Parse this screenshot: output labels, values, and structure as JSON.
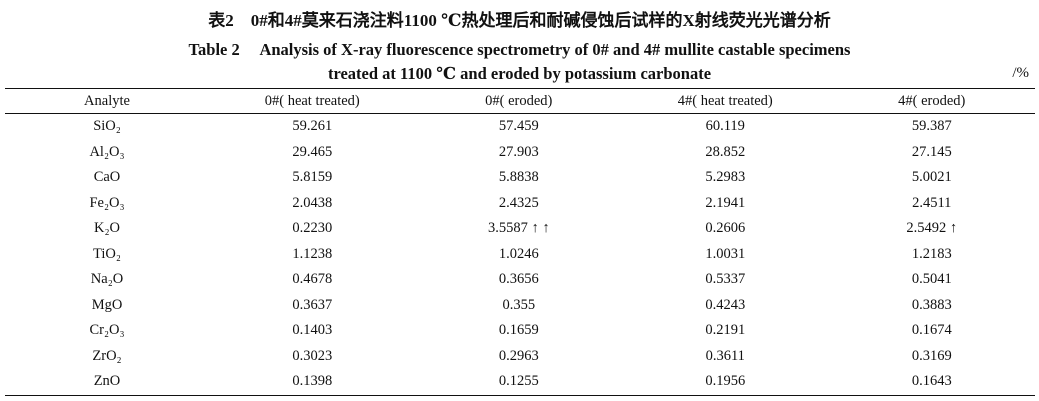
{
  "title_cn": "表2　0#和4#莫来石浇注料1100 ℃热处理后和耐碱侵蚀后试样的X射线荧光光谱分析",
  "title_en_line1": "Table 2　 Analysis of X-ray fluorescence spectrometry of 0# and 4# mullite castable specimens",
  "title_en_line2": "treated at 1100 ℃ and eroded by potassium carbonate",
  "unit": "/%",
  "table": {
    "header": [
      "Analyte",
      "0#( heat treated)",
      "0#( eroded)",
      "4#( heat treated)",
      "4#( eroded)"
    ],
    "rows": [
      [
        "SiO₂",
        "59.261",
        "57.459",
        "60.119",
        "59.387"
      ],
      [
        "Al₂O₃",
        "29.465",
        "27.903",
        "28.852",
        "27.145"
      ],
      [
        "CaO",
        "5.8159",
        "5.8838",
        "5.2983",
        "5.0021"
      ],
      [
        "Fe₂O₃",
        "2.0438",
        "2.4325",
        "2.1941",
        "2.4511"
      ],
      [
        "K₂O",
        "0.2230",
        "3.5587 ↑ ↑",
        "0.2606",
        "2.5492 ↑"
      ],
      [
        "TiO₂",
        "1.1238",
        "1.0246",
        "1.0031",
        "1.2183"
      ],
      [
        "Na₂O",
        "0.4678",
        "0.3656",
        "0.5337",
        "0.5041"
      ],
      [
        "MgO",
        "0.3637",
        "0.355",
        "0.4243",
        "0.3883"
      ],
      [
        "Cr₂O₃",
        "0.1403",
        "0.1659",
        "0.2191",
        "0.1674"
      ],
      [
        "ZrO₂",
        "0.3023",
        "0.2963",
        "0.3611",
        "0.3169"
      ],
      [
        "ZnO",
        "0.1398",
        "0.1255",
        "0.1956",
        "0.1643"
      ]
    ]
  }
}
